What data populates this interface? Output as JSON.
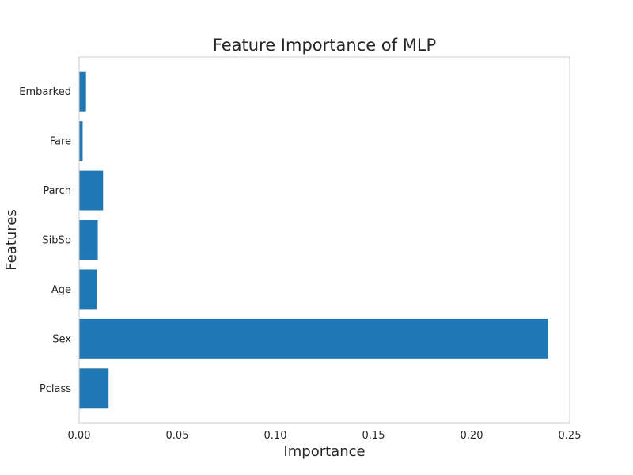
{
  "chart_data": {
    "type": "bar",
    "orientation": "horizontal",
    "title": "Feature Importance of MLP",
    "xlabel": "Importance",
    "ylabel": "Features",
    "categories": [
      "Pclass",
      "Sex",
      "Age",
      "SibSp",
      "Parch",
      "Fare",
      "Embarked"
    ],
    "values": [
      0.015,
      0.239,
      0.009,
      0.0095,
      0.0122,
      0.0018,
      0.0035
    ],
    "xlim": [
      0,
      0.25
    ],
    "xticks": [
      "0.00",
      "0.05",
      "0.10",
      "0.15",
      "0.20",
      "0.25"
    ],
    "grid": false,
    "bar_color": "#1f77b4",
    "spine_color": "#cccccc"
  }
}
